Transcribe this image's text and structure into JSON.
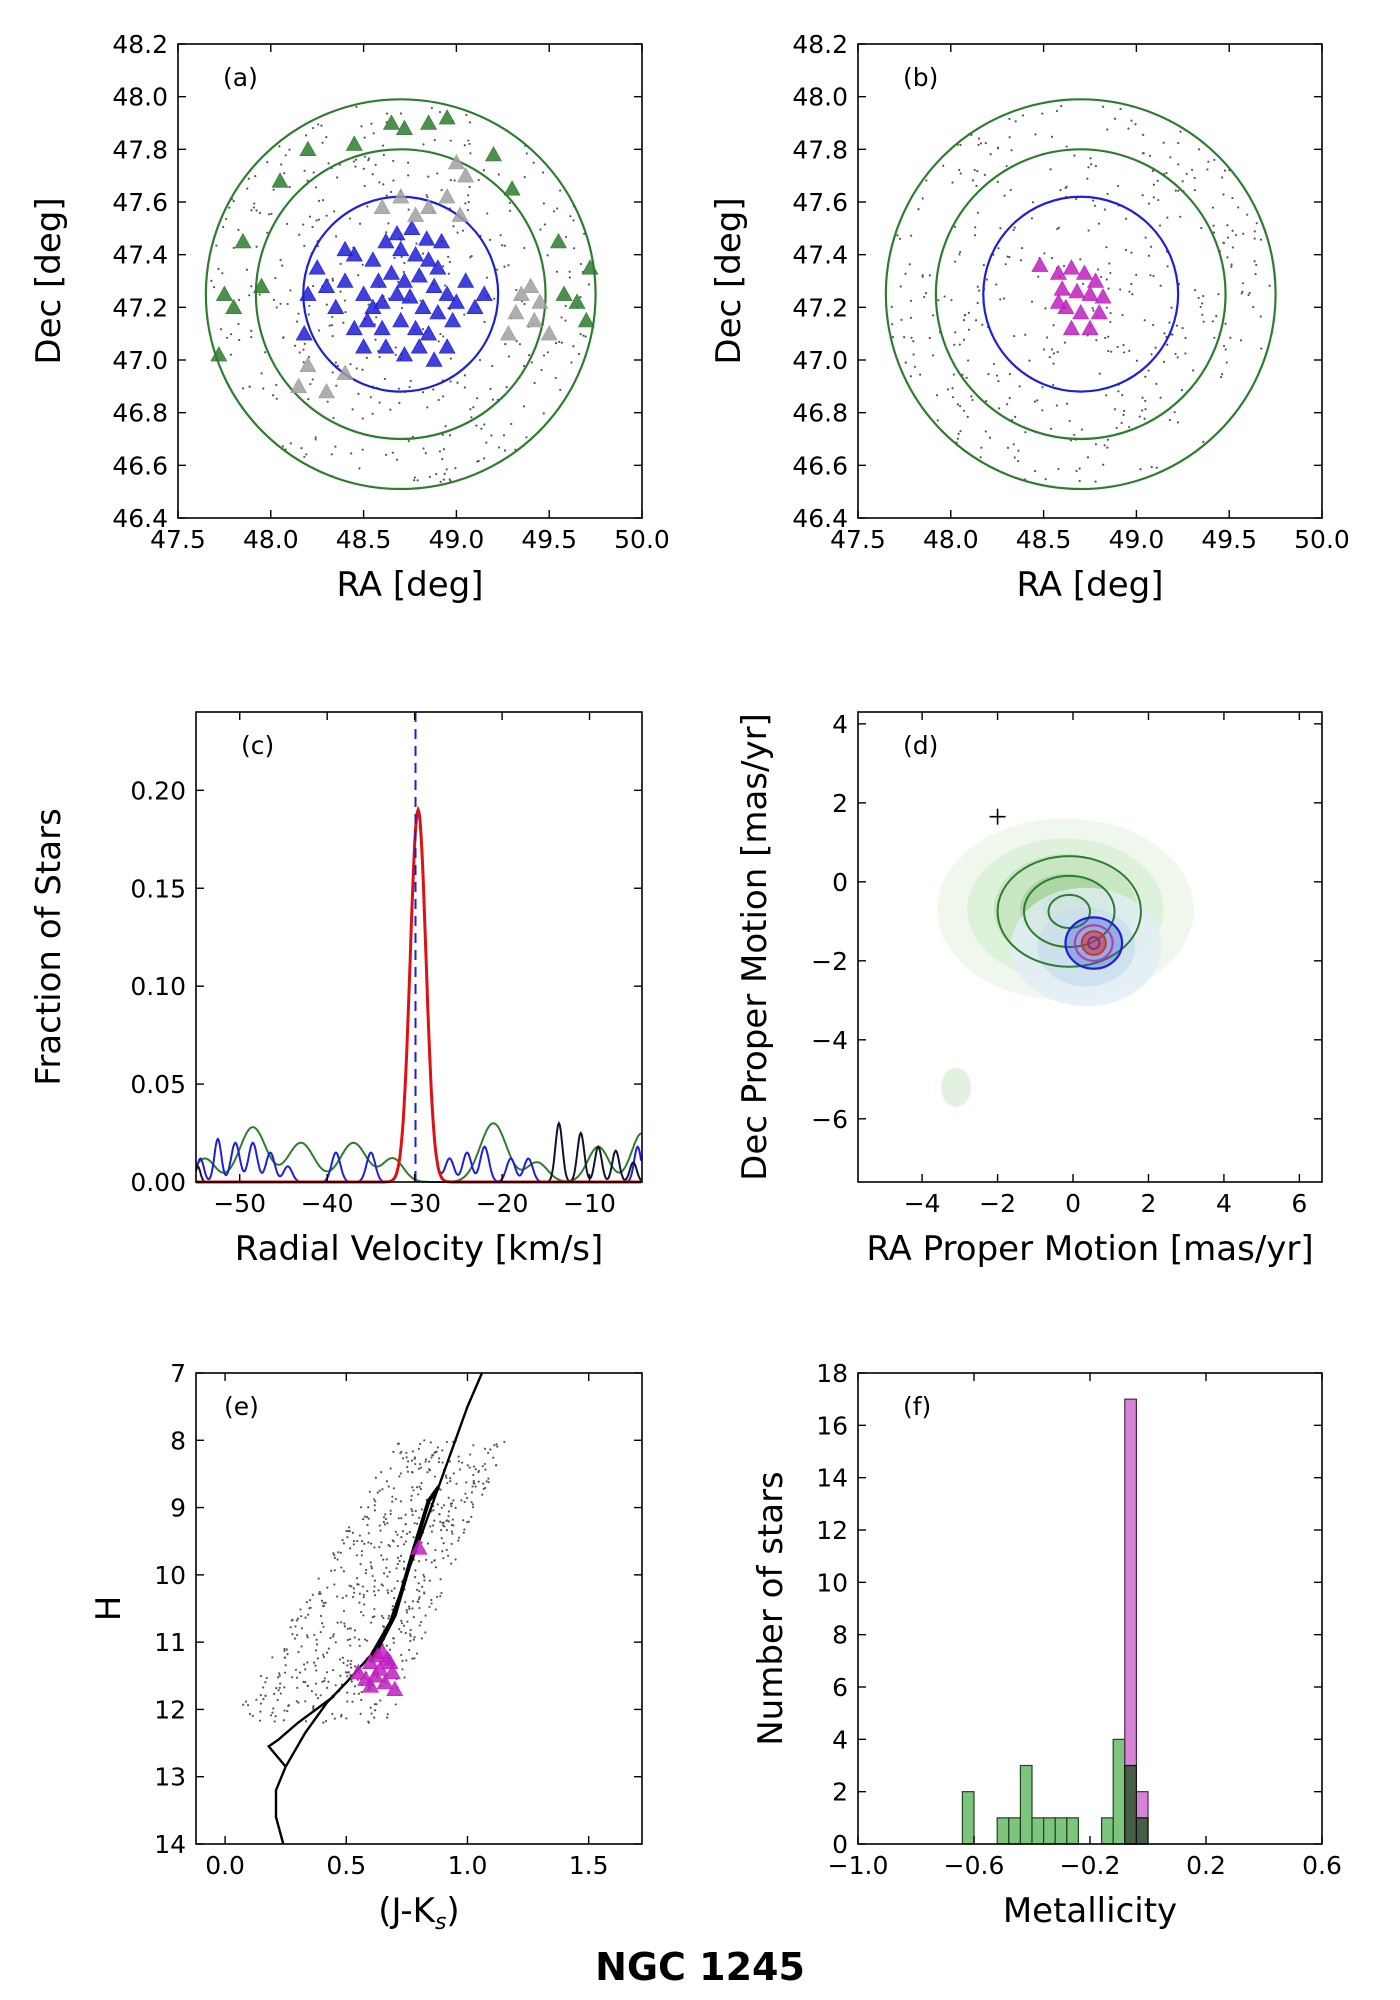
{
  "figure_title": "NGC 1245",
  "colors": {
    "member_blue": "#1f1fd6",
    "field_green": "#2e7d2e",
    "grey": "#a0a0a0",
    "magenta": "#c020c0",
    "fit_red": "#dd1111",
    "hist_purple": "#cc66cc",
    "hist_green": "#66bb66",
    "hist_dark": "#3a5a3a"
  },
  "chart_data": [
    {
      "id": "a",
      "panel_label": "(a)",
      "type": "scatter",
      "xlabel": "RA [deg]",
      "ylabel": "Dec [deg]",
      "xlim": [
        47.5,
        50.0
      ],
      "ylim": [
        46.4,
        48.2
      ],
      "xticks": [
        "47.5",
        "48.0",
        "48.5",
        "49.0",
        "49.5",
        "50.0"
      ],
      "yticks": [
        "46.4",
        "46.6",
        "46.8",
        "47.0",
        "47.2",
        "47.4",
        "47.6",
        "47.8",
        "48.0",
        "48.2"
      ],
      "circles": [
        {
          "name": "inner",
          "center": [
            48.7,
            47.25
          ],
          "radius_deg": 0.37,
          "color": "blue"
        },
        {
          "name": "annulus-inner",
          "center": [
            48.7,
            47.25
          ],
          "radius_deg": 0.55,
          "color": "green"
        },
        {
          "name": "annulus-outer",
          "center": [
            48.7,
            47.25
          ],
          "radius_deg": 0.74,
          "color": "green"
        }
      ],
      "series": [
        {
          "name": "members",
          "color": "blue",
          "marker": "triangle",
          "points": [
            [
              48.45,
              47.4
            ],
            [
              48.55,
              47.38
            ],
            [
              48.62,
              47.45
            ],
            [
              48.7,
              47.42
            ],
            [
              48.78,
              47.4
            ],
            [
              48.85,
              47.38
            ],
            [
              48.9,
              47.35
            ],
            [
              48.58,
              47.3
            ],
            [
              48.65,
              47.33
            ],
            [
              48.72,
              47.3
            ],
            [
              48.8,
              47.32
            ],
            [
              48.88,
              47.28
            ],
            [
              48.95,
              47.25
            ],
            [
              49.0,
              47.22
            ],
            [
              48.5,
              47.25
            ],
            [
              48.55,
              47.2
            ],
            [
              48.6,
              47.22
            ],
            [
              48.68,
              47.25
            ],
            [
              48.75,
              47.24
            ],
            [
              48.82,
              47.2
            ],
            [
              48.9,
              47.18
            ],
            [
              48.98,
              47.15
            ],
            [
              48.52,
              47.15
            ],
            [
              48.6,
              47.12
            ],
            [
              48.7,
              47.15
            ],
            [
              48.78,
              47.12
            ],
            [
              48.85,
              47.1
            ],
            [
              48.62,
              47.05
            ],
            [
              48.72,
              47.02
            ],
            [
              48.8,
              47.05
            ],
            [
              48.4,
              47.3
            ],
            [
              48.35,
              47.2
            ],
            [
              48.3,
              47.28
            ],
            [
              48.25,
              47.35
            ],
            [
              48.2,
              47.25
            ],
            [
              48.18,
              47.1
            ],
            [
              48.92,
              47.45
            ],
            [
              49.05,
              47.3
            ],
            [
              49.1,
              47.2
            ],
            [
              49.15,
              47.25
            ],
            [
              48.95,
              47.05
            ],
            [
              48.88,
              47.0
            ],
            [
              48.5,
              47.05
            ],
            [
              48.45,
              47.12
            ],
            [
              48.4,
              47.42
            ],
            [
              48.68,
              47.48
            ],
            [
              48.76,
              47.5
            ],
            [
              48.84,
              47.46
            ]
          ]
        },
        {
          "name": "non-members",
          "color": "grey",
          "marker": "triangle",
          "points": [
            [
              48.7,
              47.62
            ],
            [
              48.85,
              47.58
            ],
            [
              48.95,
              47.62
            ],
            [
              49.05,
              47.7
            ],
            [
              49.02,
              47.55
            ],
            [
              48.78,
              47.55
            ],
            [
              48.6,
              47.58
            ],
            [
              49.35,
              47.25
            ],
            [
              49.4,
              47.28
            ],
            [
              49.45,
              47.22
            ],
            [
              49.32,
              47.18
            ],
            [
              49.42,
              47.15
            ],
            [
              49.5,
              47.1
            ],
            [
              49.28,
              47.1
            ],
            [
              48.2,
              46.98
            ],
            [
              48.15,
              46.9
            ],
            [
              48.3,
              46.88
            ],
            [
              48.4,
              46.95
            ],
            [
              49.0,
              47.75
            ]
          ]
        },
        {
          "name": "field",
          "color": "green",
          "marker": "triangle",
          "points": [
            [
              47.85,
              47.45
            ],
            [
              47.75,
              47.25
            ],
            [
              47.8,
              47.2
            ],
            [
              47.72,
              47.02
            ],
            [
              47.95,
              47.28
            ],
            [
              48.05,
              47.68
            ],
            [
              48.2,
              47.8
            ],
            [
              48.45,
              47.82
            ],
            [
              48.65,
              47.9
            ],
            [
              48.72,
              47.88
            ],
            [
              48.85,
              47.9
            ],
            [
              48.95,
              47.92
            ],
            [
              49.55,
              47.45
            ],
            [
              49.58,
              47.25
            ],
            [
              49.65,
              47.22
            ],
            [
              49.7,
              47.15
            ],
            [
              49.72,
              47.35
            ],
            [
              49.3,
              47.65
            ],
            [
              49.2,
              47.78
            ]
          ]
        }
      ]
    },
    {
      "id": "b",
      "panel_label": "(b)",
      "type": "scatter",
      "xlabel": "RA [deg]",
      "ylabel": "Dec [deg]",
      "xlim": [
        47.5,
        50.0
      ],
      "ylim": [
        46.4,
        48.2
      ],
      "xticks": [
        "47.5",
        "48.0",
        "48.5",
        "49.0",
        "49.5",
        "50.0"
      ],
      "yticks": [
        "46.4",
        "46.6",
        "46.8",
        "47.0",
        "47.2",
        "47.4",
        "47.6",
        "47.8",
        "48.0",
        "48.2"
      ],
      "circles": [
        {
          "name": "inner",
          "center": [
            48.7,
            47.25
          ],
          "radius_deg": 0.37,
          "color": "blue"
        },
        {
          "name": "annulus-inner",
          "center": [
            48.7,
            47.25
          ],
          "radius_deg": 0.55,
          "color": "green"
        },
        {
          "name": "annulus-outer",
          "center": [
            48.7,
            47.25
          ],
          "radius_deg": 0.74,
          "color": "green"
        }
      ],
      "series": [
        {
          "name": "final-members",
          "color": "magenta",
          "marker": "triangle",
          "points": [
            [
              48.48,
              47.36
            ],
            [
              48.58,
              47.33
            ],
            [
              48.65,
              47.35
            ],
            [
              48.72,
              47.33
            ],
            [
              48.78,
              47.3
            ],
            [
              48.6,
              47.27
            ],
            [
              48.68,
              47.26
            ],
            [
              48.75,
              47.25
            ],
            [
              48.82,
              47.24
            ],
            [
              48.62,
              47.2
            ],
            [
              48.7,
              47.18
            ],
            [
              48.8,
              47.18
            ],
            [
              48.65,
              47.12
            ],
            [
              48.75,
              47.12
            ],
            [
              48.58,
              47.22
            ]
          ]
        }
      ]
    },
    {
      "id": "c",
      "panel_label": "(c)",
      "type": "line",
      "xlabel": "Radial Velocity [km/s]",
      "ylabel": "Fraction of Stars",
      "xlim": [
        -55,
        -4
      ],
      "ylim": [
        0.0,
        0.24
      ],
      "xticks": [
        "−50",
        "−40",
        "−30",
        "−20",
        "−10"
      ],
      "xtick_values": [
        -50,
        -40,
        -30,
        -20,
        -10
      ],
      "yticks": [
        "0.00",
        "0.05",
        "0.10",
        "0.15",
        "0.20"
      ],
      "ytick_values": [
        0.0,
        0.05,
        0.1,
        0.15,
        0.2
      ],
      "mean_rv_line": -29.9,
      "series": [
        {
          "name": "cluster-gaussian-fit",
          "color": "red",
          "type": "gaussian",
          "mu": -29.6,
          "sigma": 0.9,
          "amp": 0.19
        },
        {
          "name": "members",
          "color": "blue",
          "type": "peaks",
          "peaks": [
            [
              -54.5,
              0.012,
              0.4
            ],
            [
              -52.5,
              0.022,
              0.4
            ],
            [
              -50.5,
              0.02,
              0.5
            ],
            [
              -48.5,
              0.02,
              0.5
            ],
            [
              -46.5,
              0.015,
              0.5
            ],
            [
              -44.5,
              0.008,
              0.5
            ],
            [
              -39,
              0.015,
              0.5
            ],
            [
              -35,
              0.015,
              0.5
            ],
            [
              -29.6,
              0.19,
              0.9
            ],
            [
              -26,
              0.012,
              0.5
            ],
            [
              -24,
              0.015,
              0.5
            ],
            [
              -22,
              0.018,
              0.5
            ],
            [
              -19,
              0.012,
              0.5
            ],
            [
              -17,
              0.012,
              0.5
            ],
            [
              -4.5,
              0.018,
              0.4
            ]
          ]
        },
        {
          "name": "field",
          "color": "green",
          "type": "peaks",
          "peaks": [
            [
              -54,
              0.012,
              1.2
            ],
            [
              -48.5,
              0.028,
              1.5
            ],
            [
              -43,
              0.02,
              1.5
            ],
            [
              -37,
              0.02,
              1.5
            ],
            [
              -32.5,
              0.012,
              1.2
            ],
            [
              -21,
              0.03,
              1.5
            ],
            [
              -16,
              0.01,
              1.2
            ],
            [
              -9,
              0.018,
              1.2
            ],
            [
              -4,
              0.025,
              1.2
            ]
          ]
        },
        {
          "name": "all",
          "color": "dark",
          "type": "peaks",
          "peaks": [
            [
              -54.8,
              0.008,
              0.3
            ],
            [
              -29.6,
              0.19,
              0.9
            ],
            [
              -13.5,
              0.03,
              0.4
            ],
            [
              -11,
              0.025,
              0.4
            ],
            [
              -9,
              0.018,
              0.4
            ],
            [
              -7,
              0.016,
              0.4
            ],
            [
              -5,
              0.01,
              0.4
            ]
          ]
        }
      ]
    },
    {
      "id": "d",
      "panel_label": "(d)",
      "type": "contour",
      "xlabel": "RA Proper Motion [mas/yr]",
      "ylabel": "Dec Proper Motion [mas/yr]",
      "xlim": [
        -5.7,
        6.6
      ],
      "ylim": [
        -7.6,
        4.3
      ],
      "xticks": [
        "−4",
        "−2",
        "0",
        "2",
        "4",
        "6"
      ],
      "xtick_values": [
        -4,
        -2,
        0,
        2,
        4,
        6
      ],
      "yticks": [
        "−6",
        "−4",
        "−2",
        "0",
        "2",
        "4"
      ],
      "ytick_values": [
        -6,
        -4,
        -2,
        0,
        2,
        4
      ],
      "error_cross": [
        -2.0,
        1.65
      ],
      "cluster_center": [
        0.55,
        -1.55
      ],
      "field_center": [
        -0.2,
        -0.7
      ]
    },
    {
      "id": "e",
      "panel_label": "(e)",
      "type": "scatter",
      "xlabel": "(J-K",
      "xlabel_sub": "s",
      "xlabel_end": ")",
      "ylabel": "H",
      "xlim": [
        -0.12,
        1.72
      ],
      "ylim": [
        14,
        7
      ],
      "xticks": [
        "0.0",
        "0.5",
        "1.0",
        "1.5"
      ],
      "xtick_values": [
        0.0,
        0.5,
        1.0,
        1.5
      ],
      "yticks": [
        "7",
        "8",
        "9",
        "10",
        "11",
        "12",
        "13",
        "14"
      ],
      "ytick_values": [
        7,
        8,
        9,
        10,
        11,
        12,
        13,
        14
      ],
      "isochrone": [
        [
          0.24,
          14.0
        ],
        [
          0.21,
          13.6
        ],
        [
          0.21,
          13.2
        ],
        [
          0.25,
          12.85
        ],
        [
          0.33,
          12.35
        ],
        [
          0.42,
          11.9
        ],
        [
          0.5,
          11.6
        ],
        [
          0.6,
          11.2
        ],
        [
          0.68,
          10.7
        ],
        [
          0.75,
          10.0
        ],
        [
          0.83,
          9.2
        ],
        [
          0.92,
          8.3
        ],
        [
          1.0,
          7.5
        ],
        [
          1.06,
          7.0
        ]
      ],
      "isochrone_branch": [
        [
          0.25,
          12.85
        ],
        [
          0.18,
          12.55
        ],
        [
          0.22,
          12.45
        ],
        [
          0.3,
          12.2
        ],
        [
          0.45,
          11.8
        ]
      ],
      "rgb_branch": [
        [
          0.6,
          11.3
        ],
        [
          0.7,
          10.6
        ],
        [
          0.78,
          9.6
        ],
        [
          0.84,
          8.9
        ],
        [
          0.88,
          8.7
        ]
      ],
      "members": [
        [
          0.55,
          11.45
        ],
        [
          0.6,
          11.3
        ],
        [
          0.63,
          11.2
        ],
        [
          0.65,
          11.15
        ],
        [
          0.68,
          11.3
        ],
        [
          0.62,
          11.5
        ],
        [
          0.66,
          11.6
        ],
        [
          0.7,
          11.7
        ],
        [
          0.6,
          11.65
        ],
        [
          0.64,
          11.4
        ],
        [
          0.69,
          11.45
        ],
        [
          0.58,
          11.55
        ],
        [
          0.67,
          11.25
        ],
        [
          0.8,
          9.6
        ]
      ]
    },
    {
      "id": "f",
      "panel_label": "(f)",
      "type": "bar",
      "xlabel": "Metallicity",
      "ylabel": "Number of stars",
      "xlim": [
        -1.0,
        0.6
      ],
      "ylim": [
        0,
        18
      ],
      "xticks": [
        "−1.0",
        "−0.6",
        "−0.2",
        "0.2",
        "0.6"
      ],
      "xtick_values": [
        -1.0,
        -0.6,
        -0.2,
        0.2,
        0.6
      ],
      "yticks": [
        "0",
        "2",
        "4",
        "6",
        "8",
        "10",
        "12",
        "14",
        "16",
        "18"
      ],
      "ytick_values": [
        0,
        2,
        4,
        6,
        8,
        10,
        12,
        14,
        16,
        18
      ],
      "bin_width": 0.04,
      "series": [
        {
          "name": "field",
          "color": "green",
          "bins": [
            [
              -0.64,
              2
            ],
            [
              -0.52,
              1
            ],
            [
              -0.48,
              1
            ],
            [
              -0.44,
              3
            ],
            [
              -0.4,
              1
            ],
            [
              -0.36,
              1
            ],
            [
              -0.32,
              1
            ],
            [
              -0.28,
              1
            ],
            [
              -0.16,
              1
            ],
            [
              -0.12,
              4
            ],
            [
              -0.08,
              3
            ],
            [
              -0.04,
              1
            ]
          ]
        },
        {
          "name": "members",
          "color": "magenta",
          "bins": [
            [
              -0.08,
              17
            ],
            [
              -0.04,
              2
            ]
          ]
        }
      ]
    }
  ]
}
